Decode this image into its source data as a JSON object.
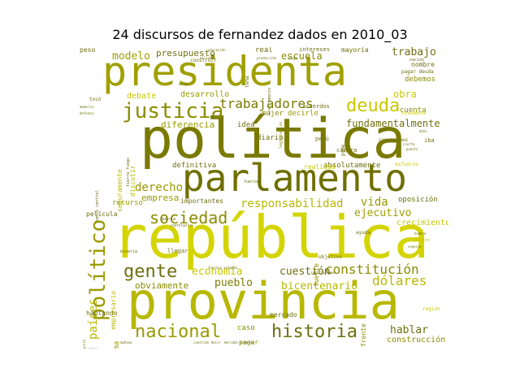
{
  "title": "24 discursos de fernandez dados en 2010_03",
  "palette": [
    "#8b8b00",
    "#b8b800",
    "#d4d400",
    "#a0a018",
    "#6f6f10"
  ],
  "words": [
    {
      "text": "república",
      "weight": 1.0,
      "color": "#d4d400",
      "orientation": "horizontal"
    },
    {
      "text": "política",
      "weight": 0.95,
      "color": "#7a7a00",
      "orientation": "horizontal"
    },
    {
      "text": "provincia",
      "weight": 0.92,
      "color": "#b8b800",
      "orientation": "horizontal"
    },
    {
      "text": "presidenta",
      "weight": 0.85,
      "color": "#a0a000",
      "orientation": "horizontal"
    },
    {
      "text": "parlamento",
      "weight": 0.7,
      "color": "#6f6f00",
      "orientation": "horizontal"
    },
    {
      "text": "político",
      "weight": 0.45,
      "color": "#9a9a00",
      "orientation": "vertical"
    },
    {
      "text": "justicia",
      "weight": 0.42,
      "color": "#8b8b00",
      "orientation": "horizontal"
    },
    {
      "text": "deuda",
      "weight": 0.35,
      "color": "#c8c800",
      "orientation": "horizontal"
    },
    {
      "text": "historia",
      "weight": 0.32,
      "color": "#6f6f10",
      "orientation": "horizontal"
    },
    {
      "text": "nacional",
      "weight": 0.32,
      "color": "#9a9a00",
      "orientation": "horizontal"
    },
    {
      "text": "sociedad",
      "weight": 0.3,
      "color": "#8b8b00",
      "orientation": "horizontal"
    },
    {
      "text": "gente",
      "weight": 0.3,
      "color": "#6f6f10",
      "orientation": "horizontal"
    },
    {
      "text": "trabajadores",
      "weight": 0.26,
      "color": "#7a7a00",
      "orientation": "horizontal"
    },
    {
      "text": "constitución",
      "weight": 0.24,
      "color": "#8b8b00",
      "orientation": "horizontal"
    },
    {
      "text": "dólares",
      "weight": 0.22,
      "color": "#b8b800",
      "orientation": "horizontal"
    },
    {
      "text": "responsabilidad",
      "weight": 0.2,
      "color": "#b8b800",
      "orientation": "horizontal"
    },
    {
      "text": "fundamentalmente",
      "weight": 0.17,
      "color": "#6f6f10",
      "orientation": "horizontal"
    },
    {
      "text": "derecho",
      "weight": 0.18,
      "color": "#9a9a00",
      "orientation": "horizontal"
    },
    {
      "text": "modelo",
      "weight": 0.17,
      "color": "#a0a000",
      "orientation": "horizontal"
    },
    {
      "text": "hablar",
      "weight": 0.16,
      "color": "#6f6f10",
      "orientation": "horizontal"
    },
    {
      "text": "economía",
      "weight": 0.16,
      "color": "#c8c800",
      "orientation": "horizontal"
    },
    {
      "text": "pueblo",
      "weight": 0.16,
      "color": "#7a7a00",
      "orientation": "horizontal"
    },
    {
      "text": "vida",
      "weight": 0.16,
      "color": "#9a9a00",
      "orientation": "horizontal"
    },
    {
      "text": "bicentenario",
      "weight": 0.15,
      "color": "#b8b800",
      "orientation": "horizontal"
    },
    {
      "text": "ejecutivo",
      "weight": 0.15,
      "color": "#a0a000",
      "orientation": "horizontal"
    },
    {
      "text": "cuestión",
      "weight": 0.15,
      "color": "#6f6f10",
      "orientation": "horizontal"
    },
    {
      "text": "obviamente",
      "weight": 0.13,
      "color": "#8b8b00",
      "orientation": "horizontal"
    },
    {
      "text": "escuela",
      "weight": 0.13,
      "color": "#8b8b00",
      "orientation": "horizontal"
    },
    {
      "text": "trabajo",
      "weight": 0.13,
      "color": "#6f6f10",
      "orientation": "horizontal"
    },
    {
      "text": "presupuesto",
      "weight": 0.12,
      "color": "#6f6f10",
      "orientation": "horizontal"
    },
    {
      "text": "obra",
      "weight": 0.13,
      "color": "#c8c800",
      "orientation": "horizontal"
    },
    {
      "text": "diferencia",
      "weight": 0.12,
      "color": "#9a9a00",
      "orientation": "horizontal"
    },
    {
      "text": "empresa",
      "weight": 0.12,
      "color": "#9a9a00",
      "orientation": "horizontal"
    },
    {
      "text": "países",
      "weight": 0.14,
      "color": "#b8b800",
      "orientation": "vertical"
    },
    {
      "text": "crecimiento",
      "weight": 0.11,
      "color": "#c8c800",
      "orientation": "horizontal"
    },
    {
      "text": "construcción",
      "weight": 0.11,
      "color": "#8b8b00",
      "orientation": "horizontal"
    },
    {
      "text": "absolutamente",
      "weight": 0.1,
      "color": "#6f6f10",
      "orientation": "horizontal"
    },
    {
      "text": "desarrollo",
      "weight": 0.1,
      "color": "#9a9a00",
      "orientation": "horizontal"
    },
    {
      "text": "debate",
      "weight": 0.1,
      "color": "#c8c800",
      "orientation": "horizontal"
    },
    {
      "text": "definitiva",
      "weight": 0.1,
      "color": "#6f6f10",
      "orientation": "horizontal"
    },
    {
      "text": "oposición",
      "weight": 0.1,
      "color": "#6f6f10",
      "orientation": "horizontal"
    },
    {
      "text": "recurso",
      "weight": 0.1,
      "color": "#9a9a00",
      "orientation": "horizontal"
    },
    {
      "text": "cuenta",
      "weight": 0.09,
      "color": "#8b8b00",
      "orientation": "horizontal"
    },
    {
      "text": "debemos",
      "weight": 0.09,
      "color": "#8b8b00",
      "orientation": "horizontal"
    },
    {
      "text": "caso",
      "weight": 0.09,
      "color": "#8b8b00",
      "orientation": "horizontal"
    },
    {
      "text": "mujer",
      "weight": 0.09,
      "color": "#8b8b00",
      "orientation": "horizontal"
    },
    {
      "text": "decirle",
      "weight": 0.09,
      "color": "#9a9a00",
      "orientation": "horizontal"
    },
    {
      "text": "diario",
      "weight": 0.09,
      "color": "#6f6f10",
      "orientation": "horizontal"
    },
    {
      "text": "idea",
      "weight": 0.09,
      "color": "#6f6f10",
      "orientation": "horizontal"
    },
    {
      "text": "real",
      "weight": 0.09,
      "color": "#6f6f10",
      "orientation": "horizontal"
    },
    {
      "text": "mercado",
      "weight": 0.09,
      "color": "#6f6f10",
      "orientation": "horizontal"
    },
    {
      "text": "pagar",
      "weight": 0.09,
      "color": "#8b8b00",
      "orientation": "horizontal"
    },
    {
      "text": "nombre",
      "weight": 0.08,
      "color": "#6f6f10",
      "orientation": "horizontal"
    },
    {
      "text": "realidad",
      "weight": 0.08,
      "color": "#c8c800",
      "orientation": "horizontal"
    },
    {
      "text": "importantes",
      "weight": 0.08,
      "color": "#6f6f10",
      "orientation": "horizontal"
    },
    {
      "text": "mayoría",
      "weight": 0.08,
      "color": "#6f6f10",
      "orientation": "horizontal"
    },
    {
      "text": "película",
      "weight": 0.08,
      "color": "#6f6f10",
      "orientation": "horizontal"
    },
    {
      "text": "hablando",
      "weight": 0.08,
      "color": "#6f6f10",
      "orientation": "horizontal"
    },
    {
      "text": "problema",
      "weight": 0.08,
      "color": "#9a9a00",
      "orientation": "vertical"
    },
    {
      "text": "empresario",
      "weight": 0.08,
      "color": "#b8b800",
      "orientation": "vertical"
    },
    {
      "text": "seguramente",
      "weight": 0.08,
      "color": "#b8b800",
      "orientation": "vertical"
    },
    {
      "text": "discutir",
      "weight": 0.08,
      "color": "#b8b800",
      "orientation": "vertical"
    },
    {
      "text": "peso",
      "weight": 0.07,
      "color": "#6f6f10",
      "orientation": "horizontal"
    },
    {
      "text": "acuerdos",
      "weight": 0.07,
      "color": "#6f6f10",
      "orientation": "horizontal"
    },
    {
      "text": "cámara",
      "weight": 0.07,
      "color": "#6f6f10",
      "orientation": "horizontal"
    },
    {
      "text": "perú",
      "weight": 0.07,
      "color": "#6f6f10",
      "orientation": "horizontal"
    },
    {
      "text": "llegar",
      "weight": 0.07,
      "color": "#6f6f10",
      "orientation": "horizontal"
    },
    {
      "text": "objetivo",
      "weight": 0.07,
      "color": "#6f6f10",
      "orientation": "horizontal"
    },
    {
      "text": "pagar deuda",
      "weight": 0.07,
      "color": "#6f6f10",
      "orientation": "horizontal"
    },
    {
      "text": "intereses",
      "weight": 0.07,
      "color": "#6f6f10",
      "orientation": "horizontal"
    },
    {
      "text": "cuestiones",
      "weight": 0.06,
      "color": "#6f6f10",
      "orientation": "horizontal"
    },
    {
      "text": "región",
      "weight": 0.06,
      "color": "#c8c800",
      "orientation": "horizontal"
    },
    {
      "text": "fuerte",
      "weight": 0.07,
      "color": "#8b8b00",
      "orientation": "vertical"
    },
    {
      "text": "frente",
      "weight": 0.07,
      "color": "#8b8b00",
      "orientation": "vertical"
    },
    {
      "text": "tema",
      "weight": 0.06,
      "color": "#6f6f10",
      "orientation": "vertical"
    },
    {
      "text": "pyme",
      "weight": 0.06,
      "color": "#6f6f10",
      "orientation": "vertical"
    },
    {
      "text": "construir",
      "weight": 0.06,
      "color": "#6f6f10",
      "orientation": "horizontal"
    },
    {
      "text": "esfuerzo",
      "weight": 0.05,
      "color": "#c8c800",
      "orientation": "horizontal"
    },
    {
      "text": "nación",
      "weight": 0.05,
      "color": "#6f6f10",
      "orientation": "horizontal"
    },
    {
      "text": "gestión",
      "weight": 0.05,
      "color": "#c8c800",
      "orientation": "horizontal"
    },
    {
      "text": "ayuda",
      "weight": 0.05,
      "color": "#6f6f10",
      "orientation": "horizontal"
    },
    {
      "text": "minería",
      "weight": 0.05,
      "color": "#6f6f10",
      "orientation": "horizontal"
    },
    {
      "text": "contrario",
      "weight": 0.05,
      "color": "#6f6f10",
      "orientation": "horizontal"
    },
    {
      "text": "quería",
      "weight": 0.05,
      "color": "#6f6f10",
      "orientation": "horizontal"
    },
    {
      "text": "tocó",
      "weight": 0.05,
      "color": "#6f6f10",
      "orientation": "horizontal"
    },
    {
      "text": "fuerza",
      "weight": 0.05,
      "color": "#6f6f10",
      "orientation": "horizontal"
    },
    {
      "text": "siga",
      "weight": 0.05,
      "color": "#6f6f10",
      "orientation": "horizontal"
    },
    {
      "text": "iba",
      "weight": 0.06,
      "color": "#6f6f10",
      "orientation": "horizontal"
    },
    {
      "text": "finalmente",
      "weight": 0.05,
      "color": "#c8c800",
      "orientation": "horizontal"
    },
    {
      "text": "legislativo",
      "weight": 0.05,
      "color": "#8b8b00",
      "orientation": "vertical"
    },
    {
      "text": "instrumento",
      "weight": 0.05,
      "color": "#6f6f10",
      "orientation": "vertical"
    },
    {
      "text": "banco central",
      "weight": 0.05,
      "color": "#6f6f10",
      "orientation": "vertical"
    },
    {
      "text": "tierra fuego",
      "weight": 0.05,
      "color": "#6f6f10",
      "orientation": "vertical"
    },
    {
      "text": "mañana",
      "weight": 0.04,
      "color": "#6f6f10",
      "orientation": "horizontal"
    },
    {
      "text": "cuestión decir",
      "weight": 0.04,
      "color": "#6f6f10",
      "orientation": "horizontal"
    },
    {
      "text": "mercado interno",
      "weight": 0.04,
      "color": "#6f6f10",
      "orientation": "horizontal"
    },
    {
      "text": "fuerzas armadas",
      "weight": 0.04,
      "color": "#6f6f10",
      "orientation": "horizontal"
    },
    {
      "text": "memoria",
      "weight": 0.04,
      "color": "#6f6f10",
      "orientation": "horizontal"
    },
    {
      "text": "defensa",
      "weight": 0.04,
      "color": "#6f6f10",
      "orientation": "horizontal"
    },
    {
      "text": "especie",
      "weight": 0.04,
      "color": "#6f6f10",
      "orientation": "horizontal"
    },
    {
      "text": "ciencia",
      "weight": 0.04,
      "color": "#6f6f10",
      "orientation": "vertical"
    },
    {
      "text": "sujetos",
      "weight": 0.04,
      "color": "#6f6f10",
      "orientation": "horizontal"
    },
    {
      "text": "hombre",
      "weight": 0.04,
      "color": "#6f6f10",
      "orientation": "horizontal"
    },
    {
      "text": "dato",
      "weight": 0.04,
      "color": "#6f6f10",
      "orientation": "horizontal"
    },
    {
      "text": "cierta",
      "weight": 0.04,
      "color": "#6f6f10",
      "orientation": "horizontal"
    },
    {
      "text": "puesto",
      "weight": 0.04,
      "color": "#6f6f10",
      "orientation": "horizontal"
    },
    {
      "text": "mismo",
      "weight": 0.04,
      "color": "#6f6f10",
      "orientation": "horizontal"
    },
    {
      "text": "millones",
      "weight": 0.04,
      "color": "#6f6f10",
      "orientation": "horizontal"
    },
    {
      "text": "educación",
      "weight": 0.04,
      "color": "#6f6f10",
      "orientation": "horizontal"
    },
    {
      "text": "producción",
      "weight": 0.04,
      "color": "#6f6f10",
      "orientation": "horizontal"
    },
    {
      "text": "institucional",
      "weight": 0.04,
      "color": "#6f6f10",
      "orientation": "horizontal"
    }
  ]
}
